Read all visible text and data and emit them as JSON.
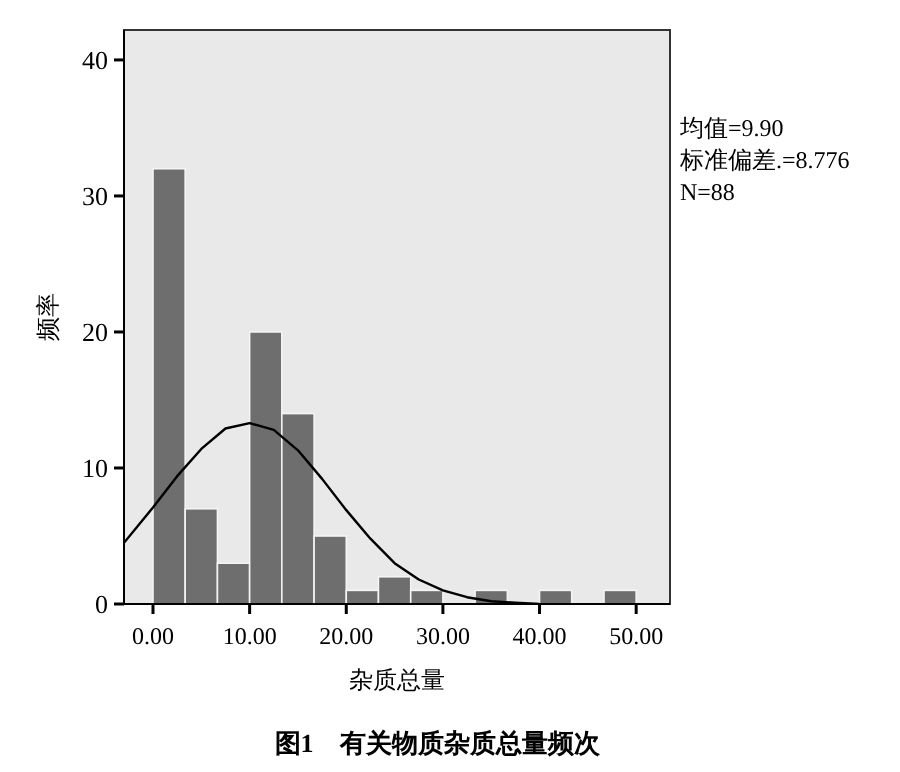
{
  "chart_data": {
    "type": "histogram",
    "title": "图1　有关物质杂质总量频次",
    "xlabel": "杂质总量",
    "ylabel": "频率",
    "annotations": [
      "均值=9.90",
      "标准偏差.=8.776",
      "N=88"
    ],
    "bins": [
      0,
      3.33,
      6.67,
      10,
      13.33,
      16.67,
      20,
      23.33,
      26.67,
      30,
      33.33,
      36.67,
      40,
      43.33,
      46.67,
      50
    ],
    "values": [
      32,
      7,
      3,
      20,
      14,
      5,
      1,
      2,
      1,
      0,
      1,
      0,
      1,
      0,
      1
    ],
    "color": "#6e6e6e",
    "series": [
      {
        "type": "line",
        "color": "#000000",
        "x": [
          -3,
          0,
          2.5,
          5,
          7.5,
          10,
          12.5,
          15,
          17.5,
          20,
          22.5,
          25,
          27.5,
          30,
          32.5,
          35,
          37.5,
          40
        ],
        "values": [
          4.5,
          7.1,
          9.4,
          11.4,
          12.9,
          13.3,
          12.8,
          11.3,
          9.2,
          6.9,
          4.8,
          3.0,
          1.8,
          1.0,
          0.5,
          0.2,
          0.1,
          0.0
        ]
      }
    ],
    "xlim": [
      -3,
      53.5
    ],
    "ylim": [
      0,
      42.2
    ],
    "xticks": [
      {
        "value": 0,
        "label": "0.00"
      },
      {
        "value": 10,
        "label": "10.00"
      },
      {
        "value": 20,
        "label": "20.00"
      },
      {
        "value": 30,
        "label": "30.00"
      },
      {
        "value": 40,
        "label": "40.00"
      },
      {
        "value": 50,
        "label": "50.00"
      }
    ],
    "yticks": [
      0,
      10,
      20,
      30,
      40
    ]
  }
}
